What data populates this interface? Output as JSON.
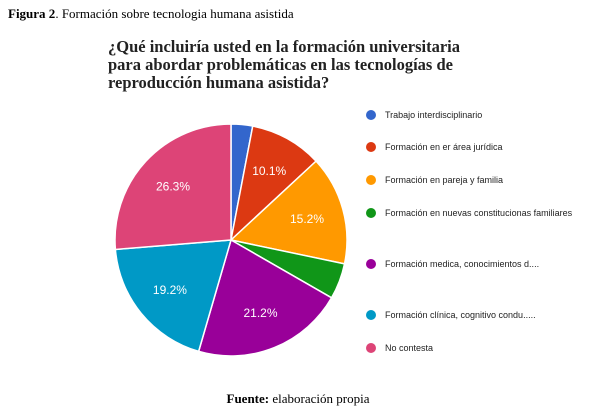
{
  "figure_caption": {
    "label": "Figura 2",
    "text": ". Formación sobre tecnologia humana asistida"
  },
  "chart_data": {
    "type": "pie",
    "title": "¿Qué incluiría usted en la formación universitaria para abordar problemáticas en las tecnologías de reproducción humana asistida?",
    "legend_position": "right",
    "slices": [
      {
        "name": "Trabajo interdisciplinario",
        "value": 3.0,
        "label": "",
        "color": "#3366cc"
      },
      {
        "name": "Formación en er área jurídica",
        "value": 10.1,
        "label": "10.1%",
        "color": "#dc3912"
      },
      {
        "name": "Formación en pareja y familia",
        "value": 15.2,
        "label": "15.2%",
        "color": "#ff9900"
      },
      {
        "name": "Formación en nuevas constitucionas familiares",
        "value": 5.0,
        "label": "",
        "color": "#109618"
      },
      {
        "name": "Formación medica, conocimientos d....",
        "value": 21.2,
        "label": "21.2%",
        "color": "#990099"
      },
      {
        "name": "Formación clínica, cognitivo condu.....",
        "value": 19.2,
        "label": "19.2%",
        "color": "#0099c6"
      },
      {
        "name": "No contesta",
        "value": 26.3,
        "label": "26.3%",
        "color": "#dd4477"
      }
    ]
  },
  "source_caption": {
    "label": "Fuente:",
    "text": " elaboración propia"
  }
}
